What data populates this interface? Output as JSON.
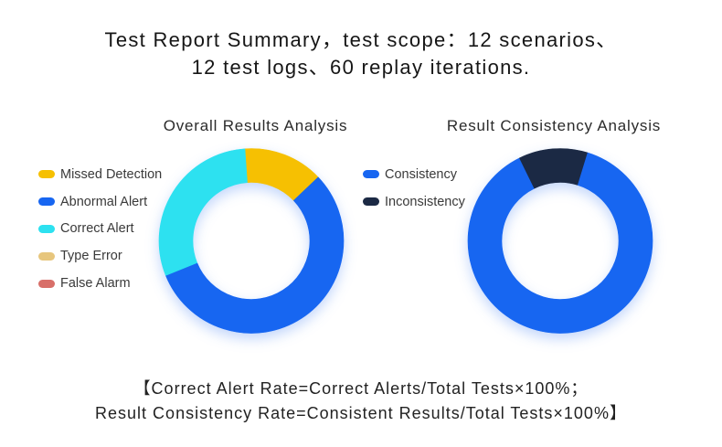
{
  "title": {
    "line1": "Test Report Summary，test scope：12 scenarios、",
    "line2": "12 test logs、60 replay iterations."
  },
  "chart_data": [
    {
      "type": "pie",
      "donut": true,
      "title": "Overall Results Analysis",
      "categories": [
        "Missed Detection",
        "Abnormal Alert",
        "Correct Alert",
        "Type Error",
        "False Alarm"
      ],
      "values": [
        14,
        56,
        30,
        0,
        0
      ],
      "colors": [
        "#F6C002",
        "#1766F1",
        "#2DE1F0",
        "#E7C67D",
        "#D86F69"
      ],
      "legend": "left"
    },
    {
      "type": "pie",
      "donut": true,
      "title": "Result Consistency Analysis",
      "categories": [
        "Consistency",
        "Inconsistency"
      ],
      "values": [
        88,
        12
      ],
      "colors": [
        "#1766F1",
        "#1B2944"
      ],
      "legend": "left"
    }
  ],
  "footer": {
    "line1": "【Correct Alert Rate=Correct Alerts/Total Tests×100%；",
    "line2": "Result Consistency Rate=Consistent Results/Total Tests×100%】"
  }
}
